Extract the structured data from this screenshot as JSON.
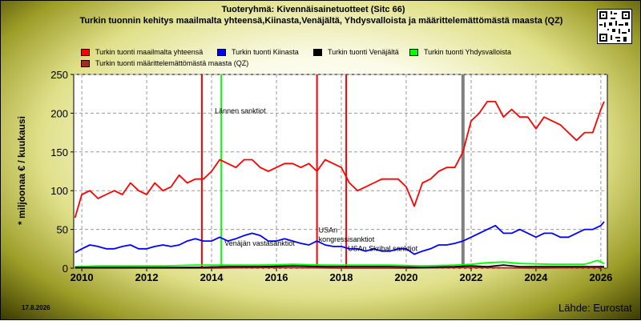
{
  "title_line1": "Tuoteryhmä: Kivennäisainetuotteet (Sitc 66)",
  "title_line2": "Turkin tuonnin kehitys maailmalta yhteensä,Kiinasta,Venäjältä, Yhdysvalloista ja määrittelemättömästä maasta (QZ)",
  "date_stamp": "17.8.2026",
  "source": "Lähde: Eurostat",
  "legend": [
    {
      "label": "Turkin tuonti maailmalta yhteensä",
      "color": "#ff0000"
    },
    {
      "label": "Turkin tuonti Kiinasta",
      "color": "#0000ff"
    },
    {
      "label": "Turkin tuonti Venäjältä",
      "color": "#000000"
    },
    {
      "label": "Turkin tuonti Yhdysvalloista",
      "color": "#00ff00"
    },
    {
      "label": "Turkin tuonti määrittelemättömästä maasta (QZ)",
      "color": "#a52a2a"
    }
  ],
  "chart_data": {
    "type": "line",
    "ylabel": "* miljoonaa € / kuukausi",
    "xlabel": "",
    "xlim": [
      2009.75,
      2026.2
    ],
    "ylim": [
      0,
      250
    ],
    "xticks": [
      2010,
      2012,
      2014,
      2016,
      2018,
      2020,
      2022,
      2024,
      2026
    ],
    "yticks": [
      0,
      50,
      100,
      150,
      200,
      250
    ],
    "grid": true,
    "series": [
      {
        "name": "Turkin tuonti maailmalta yhteensä",
        "color": "#ff0000",
        "x": [
          2009.79,
          2010.0,
          2010.25,
          2010.5,
          2010.75,
          2011.0,
          2011.25,
          2011.5,
          2011.75,
          2012.0,
          2012.25,
          2012.5,
          2012.75,
          2013.0,
          2013.25,
          2013.5,
          2013.75,
          2014.0,
          2014.25,
          2014.5,
          2014.75,
          2015.0,
          2015.25,
          2015.5,
          2015.75,
          2016.0,
          2016.25,
          2016.5,
          2016.75,
          2017.0,
          2017.25,
          2017.5,
          2017.75,
          2018.0,
          2018.25,
          2018.5,
          2018.75,
          2019.0,
          2019.25,
          2019.5,
          2019.75,
          2020.0,
          2020.25,
          2020.5,
          2020.75,
          2021.0,
          2021.25,
          2021.5,
          2021.75,
          2022.0,
          2022.25,
          2022.5,
          2022.75,
          2023.0,
          2023.25,
          2023.5,
          2023.75,
          2024.0,
          2024.25,
          2024.5,
          2024.75,
          2025.0,
          2025.25,
          2025.5,
          2025.75,
          2026.0,
          2026.1
        ],
        "y": [
          65,
          95,
          100,
          90,
          95,
          100,
          95,
          110,
          100,
          95,
          110,
          100,
          105,
          120,
          110,
          115,
          115,
          125,
          140,
          135,
          130,
          140,
          140,
          130,
          125,
          130,
          135,
          135,
          130,
          135,
          125,
          140,
          135,
          130,
          110,
          100,
          105,
          110,
          115,
          115,
          115,
          105,
          80,
          110,
          115,
          125,
          130,
          130,
          150,
          190,
          200,
          215,
          215,
          195,
          205,
          195,
          195,
          180,
          195,
          190,
          185,
          175,
          165,
          175,
          175,
          205,
          215
        ]
      },
      {
        "name": "Turkin tuonti Kiinasta",
        "color": "#0000ff",
        "x": [
          2009.79,
          2010.0,
          2010.25,
          2010.5,
          2010.75,
          2011.0,
          2011.25,
          2011.5,
          2011.75,
          2012.0,
          2012.25,
          2012.5,
          2012.75,
          2013.0,
          2013.25,
          2013.5,
          2013.75,
          2014.0,
          2014.25,
          2014.5,
          2014.75,
          2015.0,
          2015.25,
          2015.5,
          2015.75,
          2016.0,
          2016.25,
          2016.5,
          2016.75,
          2017.0,
          2017.25,
          2017.5,
          2017.75,
          2018.0,
          2018.25,
          2018.5,
          2018.75,
          2019.0,
          2019.25,
          2019.5,
          2019.75,
          2020.0,
          2020.25,
          2020.5,
          2020.75,
          2021.0,
          2021.25,
          2021.5,
          2021.75,
          2022.0,
          2022.25,
          2022.5,
          2022.75,
          2023.0,
          2023.25,
          2023.5,
          2023.75,
          2024.0,
          2024.25,
          2024.5,
          2024.75,
          2025.0,
          2025.25,
          2025.5,
          2025.75,
          2026.0,
          2026.1
        ],
        "y": [
          20,
          25,
          30,
          28,
          25,
          25,
          28,
          30,
          25,
          25,
          28,
          30,
          28,
          30,
          35,
          38,
          35,
          35,
          40,
          35,
          38,
          42,
          45,
          42,
          35,
          35,
          38,
          35,
          32,
          30,
          35,
          30,
          28,
          28,
          25,
          25,
          22,
          25,
          22,
          22,
          25,
          25,
          18,
          22,
          25,
          30,
          30,
          32,
          35,
          40,
          45,
          50,
          55,
          45,
          45,
          50,
          45,
          40,
          45,
          45,
          40,
          40,
          45,
          50,
          50,
          55,
          60
        ]
      },
      {
        "name": "Turkin tuonti Venäjältä",
        "color": "#000000",
        "x": [
          2009.79,
          2010.5,
          2011.5,
          2012.5,
          2013.5,
          2014.5,
          2015.5,
          2016.5,
          2017.5,
          2018.5,
          2019.5,
          2020.5,
          2021.5,
          2022.0,
          2022.5,
          2023.0,
          2023.5,
          2024.5,
          2025.5,
          2026.1
        ],
        "y": [
          1,
          1,
          1,
          1,
          1,
          2,
          2,
          3,
          2,
          2,
          2,
          1,
          2,
          3,
          2,
          4,
          2,
          2,
          2,
          2
        ]
      },
      {
        "name": "Turkin tuonti Yhdysvalloista",
        "color": "#00ff00",
        "x": [
          2009.79,
          2010.5,
          2011.5,
          2012.5,
          2013.5,
          2014.5,
          2015.5,
          2016.5,
          2017.5,
          2018.5,
          2019.5,
          2020.5,
          2021.5,
          2022.0,
          2022.5,
          2023.0,
          2023.5,
          2024.5,
          2025.5,
          2025.9,
          2026.1
        ],
        "y": [
          2,
          3,
          3,
          3,
          4,
          4,
          4,
          5,
          4,
          4,
          4,
          3,
          4,
          5,
          7,
          8,
          6,
          5,
          5,
          10,
          6
        ]
      },
      {
        "name": "Turkin tuonti määrittelemättömästä maasta (QZ)",
        "color": "#a52a2a",
        "x": [
          2009.79,
          2012.0,
          2014.0,
          2016.0,
          2018.0,
          2020.0,
          2022.0,
          2024.0,
          2026.1
        ],
        "y": [
          0,
          0,
          0,
          1,
          0,
          0,
          1,
          0,
          1
        ]
      }
    ],
    "vlines": [
      {
        "x": 2013.7,
        "color": "#ff0000"
      },
      {
        "x": 2014.3,
        "color": "#00ff00"
      },
      {
        "x": 2017.25,
        "color": "#ff0000"
      },
      {
        "x": 2018.15,
        "color": "#ff0000"
      },
      {
        "x": 2021.75,
        "color": "#808080"
      }
    ],
    "annotations": [
      {
        "text": "Lännen sanktiot",
        "x": 2014.1,
        "y": 200
      },
      {
        "text": "Venäjän vastasanktiot",
        "x": 2014.4,
        "y": 29
      },
      {
        "text": "USAn",
        "x": 2017.3,
        "y": 46
      },
      {
        "text": "kongressisanktiot",
        "x": 2017.3,
        "y": 34
      },
      {
        "text": "USAn Skribal sanktiot",
        "x": 2018.2,
        "y": 22
      }
    ]
  }
}
